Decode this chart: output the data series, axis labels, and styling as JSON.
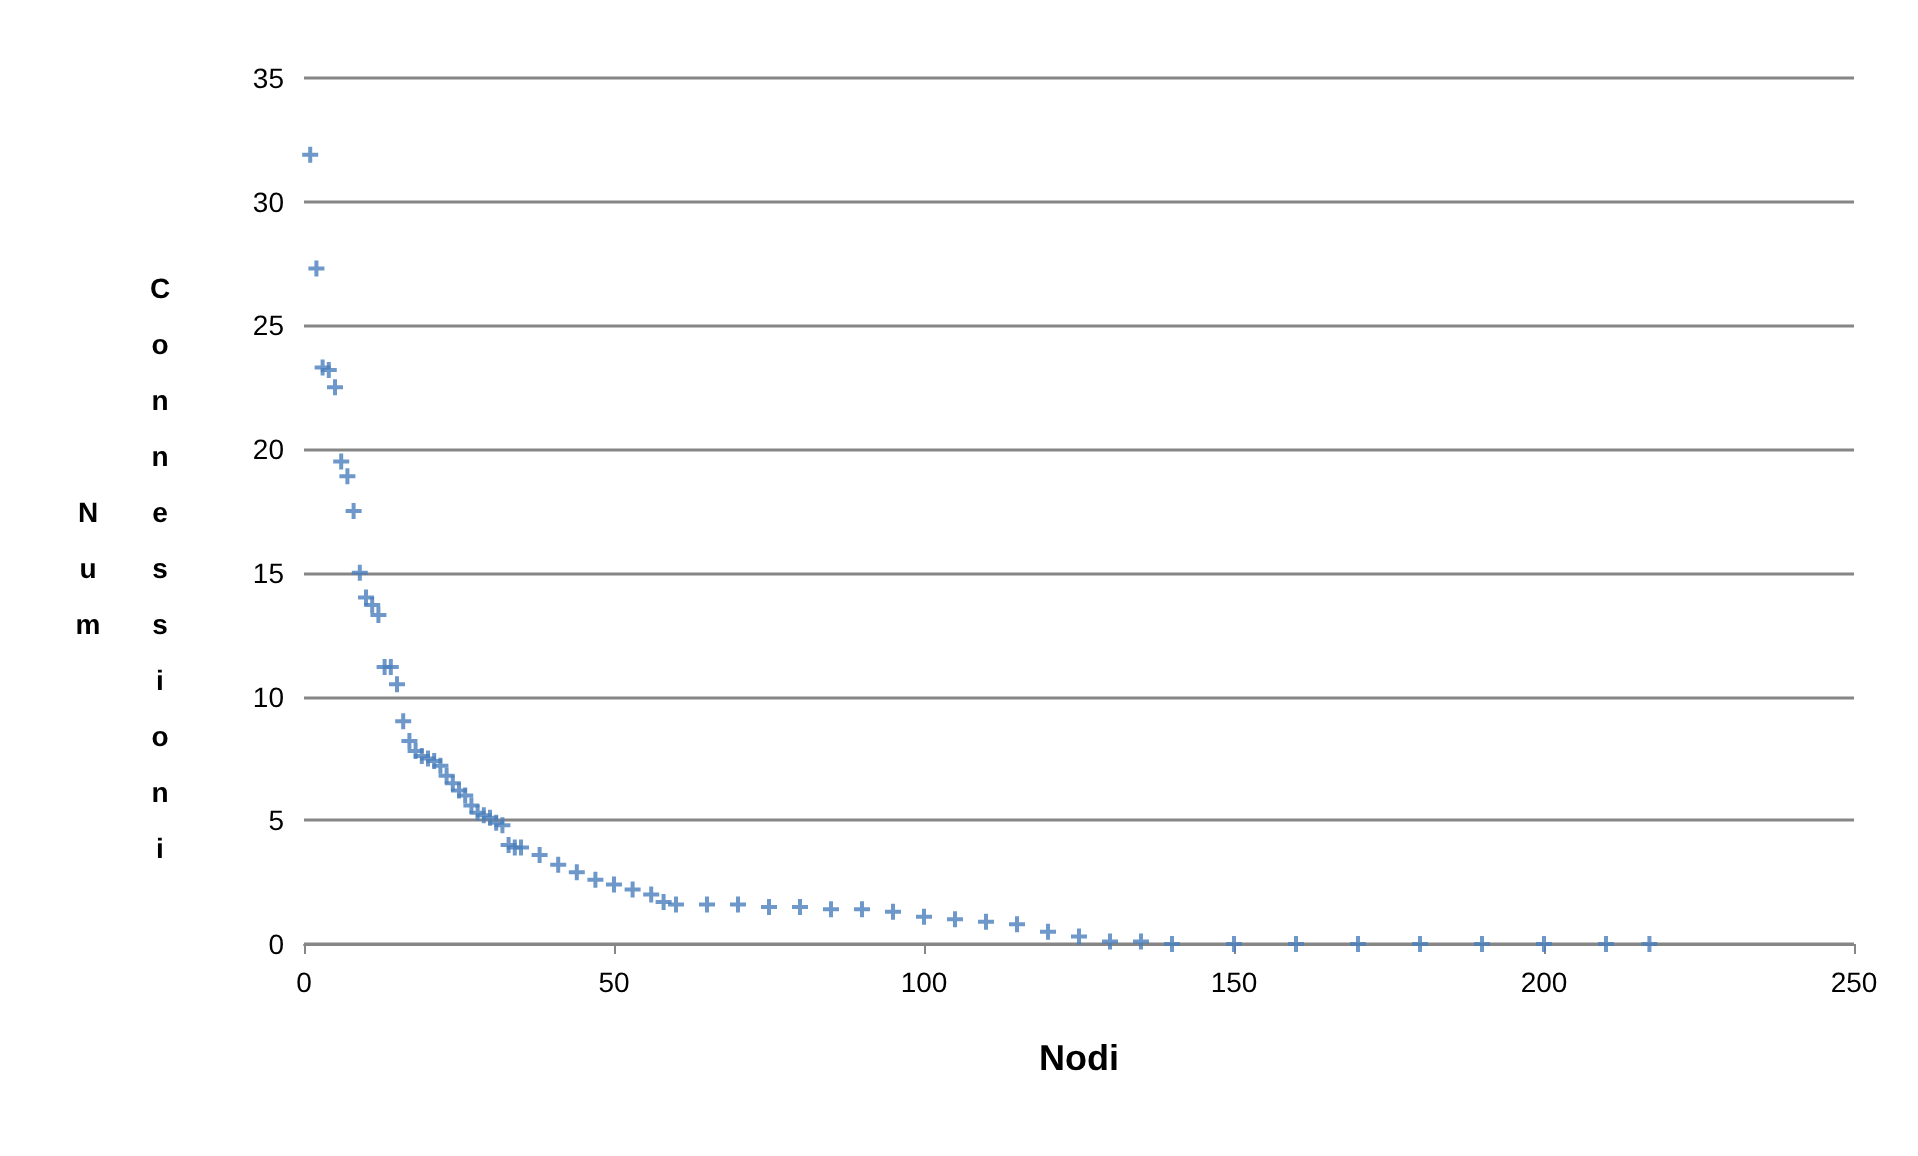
{
  "chart_data": {
    "type": "scatter",
    "xlabel": "Nodi",
    "ylabel": "Num Connessioni",
    "marker": "cross",
    "grid": "y",
    "xlim": [
      0,
      250
    ],
    "xticks": [
      0,
      50,
      100,
      150,
      200,
      250
    ],
    "ylim": [
      0,
      35
    ],
    "yticks": [
      0,
      5,
      10,
      15,
      20,
      25,
      30,
      35
    ],
    "series": [
      {
        "color": "#4a7ebb",
        "x": [
          1,
          2,
          3,
          4,
          5,
          6,
          7,
          8,
          9,
          10,
          11,
          12,
          13,
          14,
          15,
          16,
          17,
          18,
          19,
          20,
          21,
          22,
          23,
          24,
          25,
          26,
          27,
          28,
          29,
          30,
          31,
          32,
          33,
          34,
          35,
          38,
          41,
          44,
          47,
          50,
          53,
          56,
          58,
          60,
          65,
          70,
          75,
          80,
          85,
          90,
          95,
          100,
          105,
          110,
          115,
          120,
          125,
          130,
          135,
          140,
          150,
          160,
          170,
          180,
          190,
          200,
          210,
          217
        ],
        "values": [
          31.9,
          27.3,
          23.3,
          23.2,
          22.5,
          19.5,
          18.9,
          17.5,
          15.0,
          14.0,
          13.7,
          13.3,
          11.2,
          11.2,
          10.5,
          9.0,
          8.2,
          7.8,
          7.6,
          7.5,
          7.4,
          7.2,
          6.8,
          6.5,
          6.2,
          6.0,
          5.6,
          5.3,
          5.2,
          5.1,
          4.9,
          4.8,
          4.0,
          3.9,
          3.9,
          3.6,
          3.2,
          2.9,
          2.6,
          2.4,
          2.2,
          2.0,
          1.7,
          1.6,
          1.6,
          1.6,
          1.5,
          1.5,
          1.4,
          1.4,
          1.3,
          1.1,
          1.0,
          0.9,
          0.8,
          0.5,
          0.3,
          0.1,
          0.1,
          0,
          0,
          0,
          0,
          0,
          0,
          0,
          0,
          0
        ]
      }
    ]
  }
}
